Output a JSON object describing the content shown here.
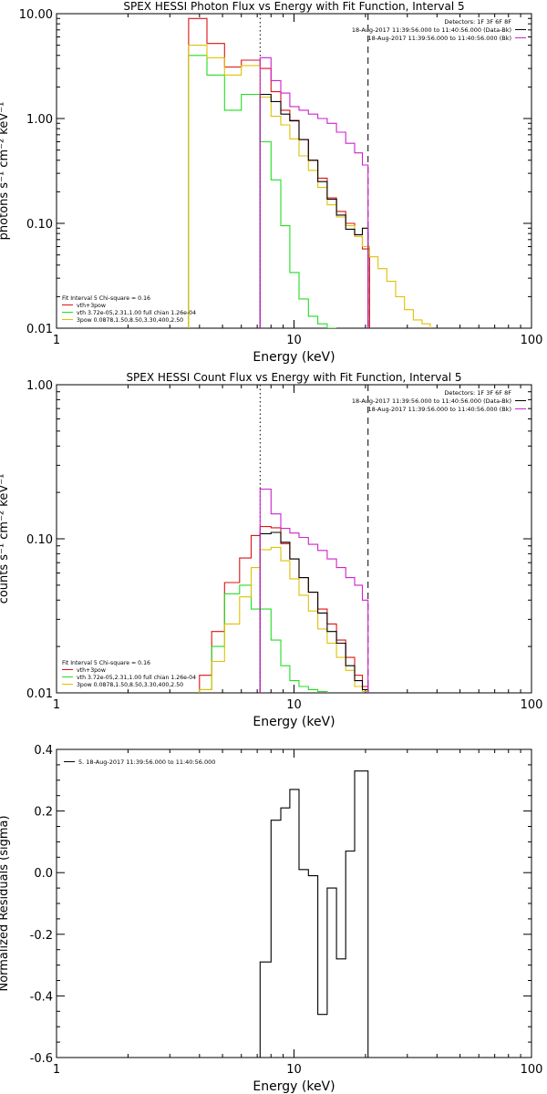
{
  "colors": {
    "background": "#ffffff",
    "axes": "#000000",
    "red": "#dd1111",
    "green": "#22dd22",
    "yellow": "#e0c000",
    "magenta": "#cc22cc",
    "black": "#000000"
  },
  "chart_data": [
    {
      "type": "line",
      "title": "SPEX HESSI Photon Flux vs Energy with Fit Function, Interval 5",
      "xlabel": "Energy (keV)",
      "ylabel": "photons s⁻¹ cm⁻² keV⁻¹",
      "xscale": "log",
      "yscale": "log",
      "xlim": [
        1,
        100
      ],
      "ylim": [
        0.01,
        10
      ],
      "xticks": [
        1,
        10,
        100
      ],
      "xtick_labels": [
        "1",
        "10",
        "100"
      ],
      "yticks": [
        0.01,
        0.1,
        1,
        10
      ],
      "ytick_labels": [
        "0.01",
        "0.10",
        "1.00",
        "10.00"
      ],
      "grid": false,
      "vlines": [
        {
          "x": 7.2,
          "style": "dotted"
        },
        {
          "x": 20.5,
          "style": "dashed"
        }
      ],
      "legend_top_right": [
        {
          "text": "Detectors: 1F 3F 6F 8F",
          "color": "#000000"
        },
        {
          "text": "18-Aug-2017 11:39:56.000 to 11:40:56.000 (Data-Bk)",
          "color": "#000000"
        },
        {
          "text": "18-Aug-2017 11:39:56.000 to 11:40:56.000 (Bk)",
          "color": "#cc22cc"
        }
      ],
      "legend_bottom_left": [
        {
          "text": "Fit Interval 5   Chi-square = 0.16",
          "color": "#000000"
        },
        {
          "text": "vth+3pow",
          "color": "#dd1111"
        },
        {
          "text": "vth 3.72e-05,2.31,1.00  full chian 1.26e-04",
          "color": "#22dd22"
        },
        {
          "text": "3pow 0.0878,1.50,8.50,3.30,400,2.50",
          "color": "#e0c000"
        }
      ],
      "series": [
        {
          "color": "#dd1111",
          "style": "step",
          "edges": [
            3.6,
            4.3,
            5.1,
            6.0,
            7.2,
            8.0,
            8.8,
            9.6,
            10.5,
            11.5,
            12.6,
            13.8,
            15.1,
            16.5,
            18.0,
            19.4,
            20.8
          ],
          "values": [
            9.0,
            5.2,
            3.1,
            3.6,
            3.0,
            1.8,
            1.2,
            0.96,
            0.63,
            0.4,
            0.27,
            0.175,
            0.13,
            0.1,
            0.075,
            0.057
          ]
        },
        {
          "color": "#22dd22",
          "style": "step",
          "edges": [
            3.6,
            4.3,
            5.1,
            6.0,
            7.2,
            8.0,
            8.8,
            9.6,
            10.5,
            11.5,
            12.6,
            13.8,
            15.1
          ],
          "values": [
            4.0,
            2.6,
            1.2,
            1.7,
            0.6,
            0.26,
            0.095,
            0.034,
            0.019,
            0.013,
            0.011,
            0.01
          ]
        },
        {
          "color": "#e0c000",
          "style": "step",
          "edges": [
            3.6,
            4.3,
            5.1,
            6.0,
            7.2,
            8.0,
            8.8,
            9.6,
            10.5,
            11.5,
            12.6,
            13.8,
            15.1,
            16.5,
            18.0,
            19.4,
            20.8,
            22.6,
            24.6,
            26.8,
            29.2,
            31.8,
            34.6,
            37.5
          ],
          "values": [
            5.0,
            3.8,
            2.6,
            3.2,
            1.6,
            1.05,
            0.87,
            0.64,
            0.44,
            0.32,
            0.22,
            0.15,
            0.115,
            0.095,
            0.075,
            0.06,
            0.048,
            0.037,
            0.028,
            0.02,
            0.015,
            0.012,
            0.011
          ]
        },
        {
          "color": "#000000",
          "style": "step",
          "edges": [
            7.2,
            8.0,
            8.8,
            9.6,
            10.5,
            11.5,
            12.6,
            13.8,
            15.1,
            16.5,
            18.0,
            19.4,
            20.5
          ],
          "values": [
            1.7,
            1.45,
            1.1,
            0.95,
            0.63,
            0.4,
            0.25,
            0.17,
            0.12,
            0.088,
            0.078,
            0.09
          ]
        },
        {
          "color": "#cc22cc",
          "style": "step",
          "edges": [
            7.2,
            8.0,
            8.8,
            9.6,
            10.5,
            11.5,
            12.6,
            13.8,
            15.1,
            16.5,
            18.0,
            19.4,
            20.5
          ],
          "values": [
            3.8,
            2.3,
            1.75,
            1.3,
            1.2,
            1.1,
            1.0,
            0.9,
            0.74,
            0.58,
            0.47,
            0.36
          ]
        }
      ]
    },
    {
      "type": "line",
      "title": "SPEX HESSI Count Flux vs Energy with Fit Function, Interval 5",
      "xlabel": "Energy (keV)",
      "ylabel": "counts s⁻¹ cm⁻² keV⁻¹",
      "xscale": "log",
      "yscale": "log",
      "xlim": [
        1,
        100
      ],
      "ylim": [
        0.01,
        1
      ],
      "xticks": [
        1,
        10,
        100
      ],
      "xtick_labels": [
        "1",
        "10",
        "100"
      ],
      "yticks": [
        0.01,
        0.1,
        1
      ],
      "ytick_labels": [
        "0.01",
        "0.10",
        "1.00"
      ],
      "grid": false,
      "vlines": [
        {
          "x": 7.2,
          "style": "dotted"
        },
        {
          "x": 20.5,
          "style": "dashed"
        }
      ],
      "legend_top_right": [
        {
          "text": "Detectors: 1F 3F 6F 8F",
          "color": "#000000"
        },
        {
          "text": "18-Aug-2017 11:39:56.000 to 11:40:56.000 (Data-Bk)",
          "color": "#000000"
        },
        {
          "text": "18-Aug-2017 11:39:56.000 to 11:40:56.000 (Bk)",
          "color": "#cc22cc"
        }
      ],
      "legend_bottom_left": [
        {
          "text": "Fit Interval 5   Chi-square = 0.16",
          "color": "#000000"
        },
        {
          "text": "vth+3pow",
          "color": "#dd1111"
        },
        {
          "text": "vth 3.72e-05,2.31,1.00  full chian 1.26e-04",
          "color": "#22dd22"
        },
        {
          "text": "3pow 0.0878,1.50,8.50,3.30,400,2.50",
          "color": "#e0c000"
        }
      ],
      "series": [
        {
          "color": "#dd1111",
          "style": "step",
          "edges": [
            4.0,
            4.5,
            5.1,
            5.9,
            6.6,
            7.2,
            8.0,
            8.8,
            9.6,
            10.5,
            11.5,
            12.6,
            13.8,
            15.1,
            16.5,
            18.0,
            19.4,
            20.5
          ],
          "values": [
            0.013,
            0.025,
            0.052,
            0.075,
            0.105,
            0.12,
            0.118,
            0.093,
            0.074,
            0.056,
            0.045,
            0.035,
            0.028,
            0.022,
            0.017,
            0.013,
            0.011
          ]
        },
        {
          "color": "#22dd22",
          "style": "step",
          "edges": [
            4.0,
            4.5,
            5.1,
            5.9,
            6.6,
            7.2,
            8.0,
            8.8,
            9.6,
            10.5,
            11.5,
            12.6,
            13.8
          ],
          "values": [
            0.0105,
            0.02,
            0.044,
            0.05,
            0.035,
            0.035,
            0.022,
            0.015,
            0.012,
            0.011,
            0.0105,
            0.0102
          ]
        },
        {
          "color": "#e0c000",
          "style": "step",
          "edges": [
            4.0,
            4.5,
            5.1,
            5.9,
            6.6,
            7.2,
            8.0,
            8.8,
            9.6,
            10.5,
            11.5,
            12.6,
            13.8,
            15.1,
            16.5,
            18.0,
            19.4,
            20.5
          ],
          "values": [
            0.0105,
            0.016,
            0.028,
            0.042,
            0.065,
            0.085,
            0.088,
            0.072,
            0.055,
            0.043,
            0.034,
            0.026,
            0.021,
            0.017,
            0.014,
            0.011,
            0.0102
          ]
        },
        {
          "color": "#000000",
          "style": "step",
          "edges": [
            7.2,
            8.0,
            8.8,
            9.6,
            10.5,
            11.5,
            12.6,
            13.8,
            15.1,
            16.5,
            18.0,
            19.4,
            20.5
          ],
          "values": [
            0.108,
            0.11,
            0.095,
            0.074,
            0.056,
            0.045,
            0.033,
            0.025,
            0.021,
            0.015,
            0.012,
            0.0105
          ]
        },
        {
          "color": "#cc22cc",
          "style": "step",
          "edges": [
            7.2,
            8.0,
            8.8,
            9.6,
            10.5,
            11.5,
            12.6,
            13.8,
            15.1,
            16.5,
            18.0,
            19.4,
            20.5
          ],
          "values": [
            0.21,
            0.145,
            0.117,
            0.109,
            0.102,
            0.092,
            0.084,
            0.074,
            0.065,
            0.056,
            0.05,
            0.04
          ]
        }
      ]
    },
    {
      "type": "line",
      "title": "",
      "xlabel": "Energy (keV)",
      "ylabel": "Normalized Residuals (sigma)",
      "xscale": "log",
      "yscale": "linear",
      "xlim": [
        1,
        100
      ],
      "ylim": [
        -0.6,
        0.4
      ],
      "xticks": [
        1,
        10,
        100
      ],
      "xtick_labels": [
        "1",
        "10",
        "100"
      ],
      "yticks": [
        -0.6,
        -0.4,
        -0.2,
        0.0,
        0.2,
        0.4
      ],
      "ytick_labels": [
        "-0.6",
        "-0.4",
        "-0.2",
        "0.0",
        "0.2",
        "0.4"
      ],
      "grid": false,
      "legend_top_left": [
        {
          "text": "5. 18-Aug-2017 11:39:56.000 to 11:40:56.000",
          "color": "#000000"
        }
      ],
      "series": [
        {
          "color": "#000000",
          "style": "step",
          "edges": [
            7.2,
            8.0,
            8.8,
            9.6,
            10.5,
            11.5,
            12.6,
            13.8,
            15.1,
            16.5,
            18.0,
            19.4,
            20.5
          ],
          "values": [
            -0.29,
            0.17,
            0.21,
            0.27,
            0.01,
            -0.01,
            -0.46,
            -0.05,
            -0.28,
            0.07,
            0.33,
            0.33
          ]
        }
      ]
    }
  ]
}
